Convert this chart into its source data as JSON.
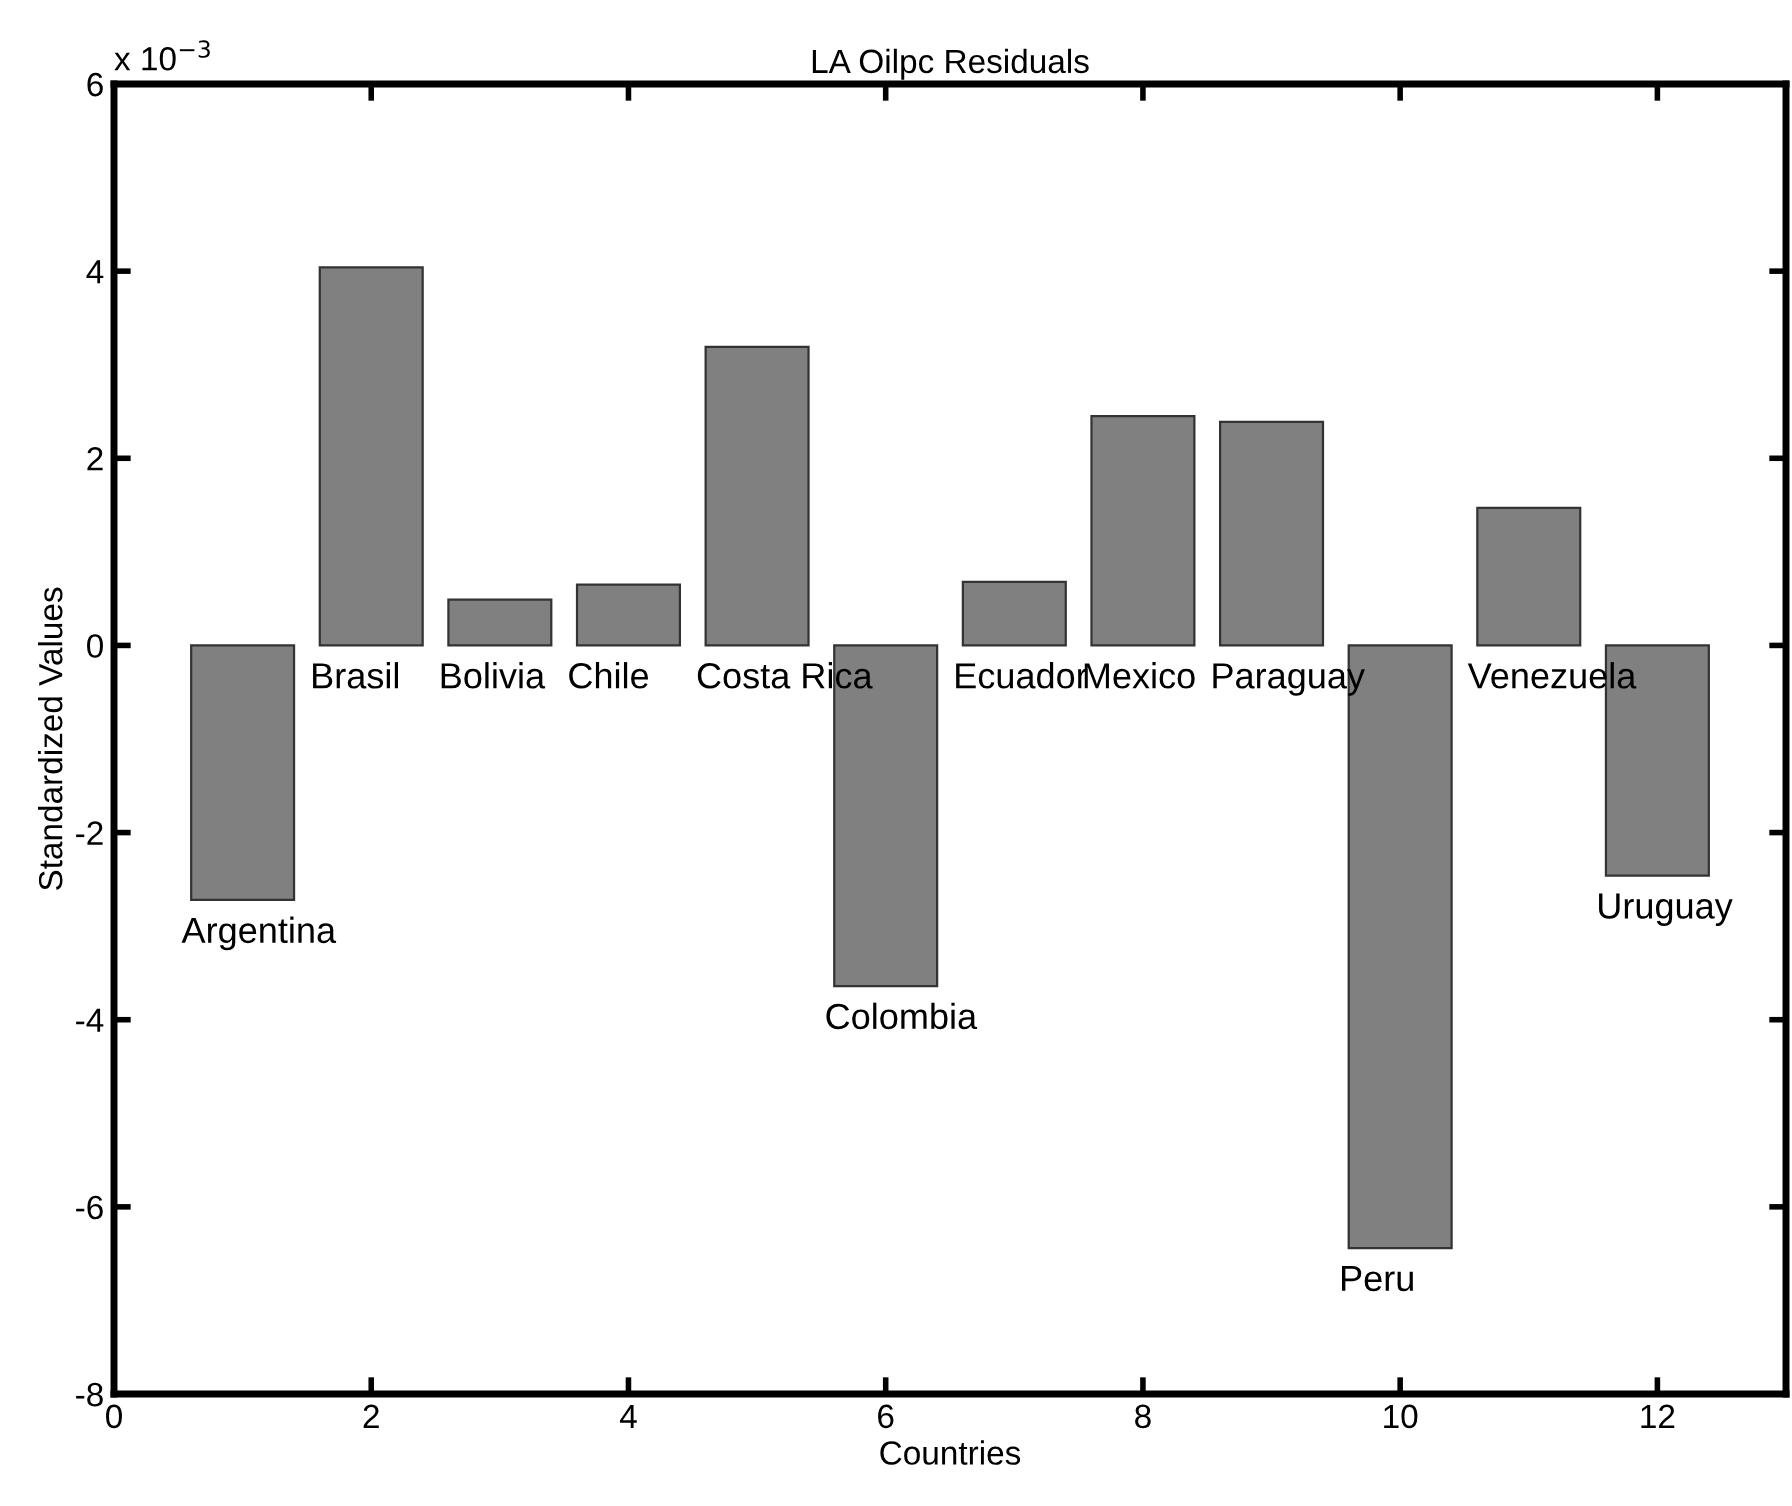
{
  "chart_data": {
    "type": "bar",
    "title": "LA Oilpc Residuals",
    "xlabel": "Countries",
    "ylabel": "Standardized Values",
    "x": [
      1,
      2,
      3,
      4,
      5,
      6,
      7,
      8,
      9,
      10,
      11,
      12
    ],
    "series": [
      {
        "color": "#808080",
        "values": [
          -2.72,
          4.04,
          0.49,
          0.65,
          3.19,
          -3.64,
          0.68,
          2.45,
          2.39,
          -6.44,
          1.47,
          -2.46
        ]
      }
    ],
    "xlim": [
      0,
      13
    ],
    "xticks": [
      0,
      2,
      4,
      6,
      8,
      10,
      12
    ],
    "ylim": [
      -8,
      6
    ],
    "yticks": [
      -8,
      -6,
      -4,
      -2,
      0,
      2,
      4,
      6
    ],
    "grid": false,
    "legend": false,
    "annotations": [
      "x 10$^{−3}$",
      {
        "text": "Argentina",
        "x": 1,
        "y": -2.72
      },
      {
        "text": "Brasil",
        "x": 2,
        "y": 0
      },
      {
        "text": "Bolivia",
        "x": 3,
        "y": 0
      },
      {
        "text": "Chile",
        "x": 4,
        "y": 0
      },
      {
        "text": "Costa Rica",
        "x": 5,
        "y": 0
      },
      {
        "text": "Colombia",
        "x": 6,
        "y": -3.64
      },
      {
        "text": "Ecuador",
        "x": 7,
        "y": 0
      },
      {
        "text": "Mexico",
        "x": 8,
        "y": 0
      },
      {
        "text": "Paraguay",
        "x": 9,
        "y": 0
      },
      {
        "text": "Peru",
        "x": 10,
        "y": -6.44
      },
      {
        "text": "Venezuela",
        "x": 11,
        "y": 0
      },
      {
        "text": "Uruguay",
        "x": 12,
        "y": -2.46
      }
    ]
  }
}
